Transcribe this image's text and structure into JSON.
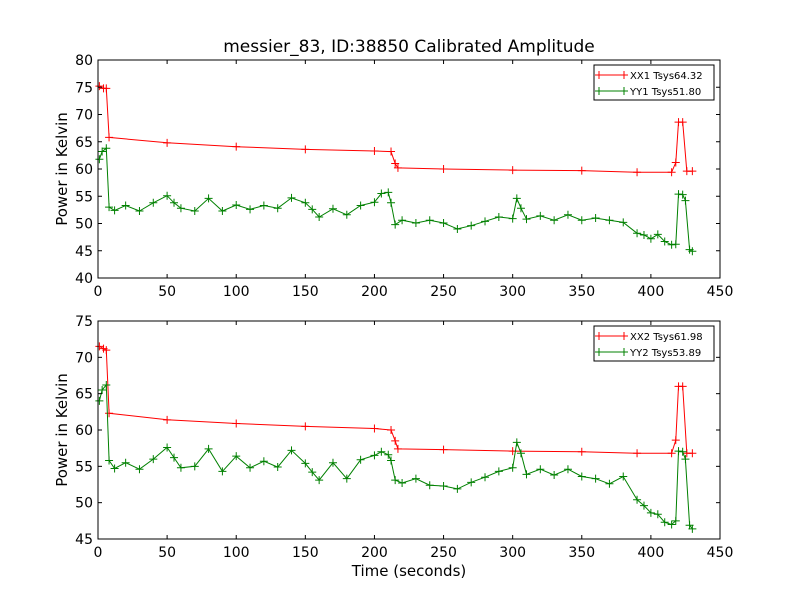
{
  "chart_data": [
    {
      "type": "line",
      "title": "messier_83, ID:38850 Calibrated Amplitude",
      "xlabel": "",
      "ylabel": "Power in Kelvin",
      "xlim": [
        0,
        450
      ],
      "ylim": [
        40,
        80
      ],
      "xticks": [
        0,
        50,
        100,
        150,
        200,
        250,
        300,
        350,
        400,
        450
      ],
      "yticks": [
        40,
        45,
        50,
        55,
        60,
        65,
        70,
        75,
        80
      ],
      "legend_position": "top-right",
      "marker": "+",
      "series": [
        {
          "name": "XX1 Tsys64.32",
          "color": "#ff0000",
          "x": [
            1,
            4,
            6,
            8,
            50,
            100,
            150,
            200,
            212,
            215,
            217,
            250,
            300,
            350,
            390,
            415,
            418,
            420,
            423,
            426,
            430
          ],
          "y": [
            75.2,
            74.8,
            74.8,
            65.8,
            64.8,
            64.1,
            63.6,
            63.3,
            63.2,
            61.0,
            60.2,
            60.0,
            59.8,
            59.7,
            59.4,
            59.4,
            61.2,
            68.6,
            68.6,
            59.6,
            59.6
          ]
        },
        {
          "name": "YY1 Tsys51.80",
          "color": "#008000",
          "x": [
            1,
            3,
            6,
            8,
            12,
            20,
            30,
            40,
            50,
            55,
            60,
            70,
            80,
            90,
            100,
            110,
            120,
            130,
            140,
            150,
            155,
            160,
            170,
            180,
            190,
            200,
            205,
            210,
            212,
            215,
            220,
            230,
            240,
            250,
            260,
            270,
            280,
            290,
            300,
            303,
            306,
            310,
            320,
            330,
            340,
            350,
            360,
            370,
            380,
            390,
            395,
            400,
            405,
            410,
            415,
            418,
            420,
            423,
            425,
            428,
            430
          ],
          "y": [
            61.8,
            63.2,
            63.8,
            53.0,
            52.4,
            53.3,
            52.3,
            53.8,
            55.1,
            53.8,
            52.8,
            52.3,
            54.6,
            52.3,
            53.4,
            52.6,
            53.3,
            52.8,
            54.7,
            53.8,
            52.6,
            51.2,
            52.7,
            51.6,
            53.3,
            53.9,
            55.5,
            55.7,
            53.8,
            49.8,
            50.6,
            50.1,
            50.6,
            50.1,
            49.0,
            49.6,
            50.4,
            51.2,
            50.9,
            54.6,
            52.8,
            50.8,
            51.4,
            50.6,
            51.6,
            50.6,
            51.0,
            50.6,
            50.2,
            48.2,
            47.9,
            47.2,
            48.0,
            46.7,
            46.1,
            46.2,
            55.4,
            55.3,
            54.2,
            45.2,
            44.9
          ]
        }
      ]
    },
    {
      "type": "line",
      "title": "",
      "xlabel": "Time (seconds)",
      "ylabel": "Power in Kelvin",
      "xlim": [
        0,
        450
      ],
      "ylim": [
        45,
        75
      ],
      "xticks": [
        0,
        50,
        100,
        150,
        200,
        250,
        300,
        350,
        400,
        450
      ],
      "yticks": [
        45,
        50,
        55,
        60,
        65,
        70,
        75
      ],
      "legend_position": "top-right",
      "marker": "+",
      "series": [
        {
          "name": "XX2 Tsys61.98",
          "color": "#ff0000",
          "x": [
            1,
            4,
            6,
            8,
            50,
            100,
            150,
            200,
            212,
            215,
            217,
            250,
            300,
            350,
            390,
            415,
            418,
            420,
            423,
            426,
            430
          ],
          "y": [
            71.5,
            71.2,
            71.0,
            62.3,
            61.4,
            60.9,
            60.5,
            60.2,
            60.0,
            58.5,
            57.4,
            57.3,
            57.1,
            57.0,
            56.8,
            56.8,
            58.6,
            66.0,
            66.0,
            56.8,
            56.8
          ]
        },
        {
          "name": "YY2 Tsys53.89",
          "color": "#008000",
          "x": [
            1,
            3,
            6,
            8,
            12,
            20,
            30,
            40,
            50,
            55,
            60,
            70,
            80,
            90,
            100,
            110,
            120,
            130,
            140,
            150,
            155,
            160,
            170,
            180,
            190,
            200,
            205,
            210,
            212,
            215,
            220,
            230,
            240,
            250,
            260,
            270,
            280,
            290,
            300,
            303,
            306,
            310,
            320,
            330,
            340,
            350,
            360,
            370,
            380,
            390,
            395,
            400,
            405,
            410,
            415,
            418,
            420,
            423,
            425,
            428,
            430
          ],
          "y": [
            64.0,
            65.5,
            66.2,
            55.8,
            54.7,
            55.5,
            54.6,
            56.0,
            57.6,
            56.2,
            54.8,
            55.0,
            57.4,
            54.3,
            56.4,
            54.8,
            55.7,
            54.9,
            57.2,
            55.4,
            54.2,
            53.1,
            55.5,
            53.3,
            55.9,
            56.5,
            57.0,
            56.6,
            55.8,
            53.1,
            52.7,
            53.3,
            52.4,
            52.3,
            51.9,
            52.8,
            53.5,
            54.3,
            54.8,
            58.3,
            56.8,
            53.9,
            54.6,
            53.8,
            54.6,
            53.6,
            53.3,
            52.6,
            53.6,
            50.4,
            49.6,
            48.6,
            48.4,
            47.3,
            47.0,
            47.5,
            57.1,
            57.0,
            56.0,
            46.9,
            46.4
          ]
        }
      ]
    }
  ]
}
